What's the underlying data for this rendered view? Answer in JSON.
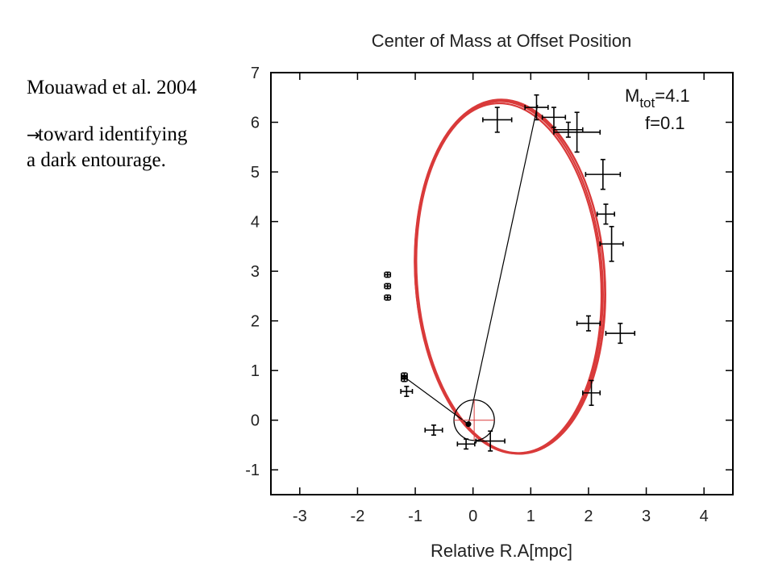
{
  "slide": {
    "citation": "Mouawad et al. 2004",
    "arrow_icon": "right-arrow-icon",
    "note_line1": "toward identifying",
    "note_line2": "a dark entourage."
  },
  "chart_data": {
    "type": "scatter",
    "title": "Center of Mass at Offset Position",
    "xlabel": "Relative R.A[mpc]",
    "ylabel": "",
    "xlim": [
      -3.5,
      4.5
    ],
    "ylim": [
      -1.5,
      7
    ],
    "xticks": [
      -3,
      -2,
      -1,
      0,
      1,
      2,
      3,
      4
    ],
    "yticks": [
      -1,
      0,
      1,
      2,
      3,
      4,
      5,
      6,
      7
    ],
    "grid": false,
    "annotation": {
      "mtot_prefix": "M",
      "mtot_sub": "tot",
      "mtot_value": "=4.1",
      "f": "f=0.1"
    },
    "orbit": {
      "color": "#d93a3a",
      "center": [
        0.62,
        2.88
      ],
      "semi_axis_x": 1.62,
      "semi_axis_y": 3.55,
      "rotation_deg": -4
    },
    "points": [
      {
        "x": 0.42,
        "y": 6.05,
        "xerr": 0.25,
        "yerr": 0.25
      },
      {
        "x": 1.1,
        "y": 6.3,
        "xerr": 0.2,
        "yerr": 0.25
      },
      {
        "x": 1.4,
        "y": 6.1,
        "xerr": 0.2,
        "yerr": 0.2
      },
      {
        "x": 1.65,
        "y": 5.85,
        "xerr": 0.25,
        "yerr": 0.15
      },
      {
        "x": 1.8,
        "y": 5.8,
        "xerr": 0.4,
        "yerr": 0.4
      },
      {
        "x": 2.25,
        "y": 4.95,
        "xerr": 0.3,
        "yerr": 0.3
      },
      {
        "x": 2.3,
        "y": 4.15,
        "xerr": 0.15,
        "yerr": 0.2
      },
      {
        "x": 2.4,
        "y": 3.55,
        "xerr": 0.2,
        "yerr": 0.35
      },
      {
        "x": 2.0,
        "y": 1.95,
        "xerr": 0.2,
        "yerr": 0.15
      },
      {
        "x": 2.55,
        "y": 1.75,
        "xerr": 0.25,
        "yerr": 0.2
      },
      {
        "x": 2.05,
        "y": 0.55,
        "xerr": 0.15,
        "yerr": 0.25
      },
      {
        "x": -1.48,
        "y": 2.93,
        "xerr": 0.05,
        "yerr": 0.05
      },
      {
        "x": -1.48,
        "y": 2.7,
        "xerr": 0.05,
        "yerr": 0.05
      },
      {
        "x": -1.48,
        "y": 2.47,
        "xerr": 0.05,
        "yerr": 0.05
      },
      {
        "x": -1.19,
        "y": 0.9,
        "xerr": 0.05,
        "yerr": 0.05
      },
      {
        "x": -1.19,
        "y": 0.83,
        "xerr": 0.05,
        "yerr": 0.05
      },
      {
        "x": -1.15,
        "y": 0.58,
        "xerr": 0.1,
        "yerr": 0.1
      },
      {
        "x": -0.68,
        "y": -0.2,
        "xerr": 0.15,
        "yerr": 0.1
      },
      {
        "x": -0.12,
        "y": -0.48,
        "xerr": 0.15,
        "yerr": 0.1
      },
      {
        "x": 0.3,
        "y": -0.42,
        "xerr": 0.25,
        "yerr": 0.2
      }
    ],
    "center_of_mass": {
      "x": -0.08,
      "y": -0.08
    },
    "offset_circle": {
      "x": 0.02,
      "y": 0.0,
      "r": 0.35
    },
    "connector_lines": [
      {
        "from": [
          -0.08,
          -0.08
        ],
        "to": [
          1.12,
          6.35
        ]
      },
      {
        "from": [
          -0.08,
          -0.08
        ],
        "to": [
          -1.19,
          0.87
        ]
      }
    ]
  }
}
